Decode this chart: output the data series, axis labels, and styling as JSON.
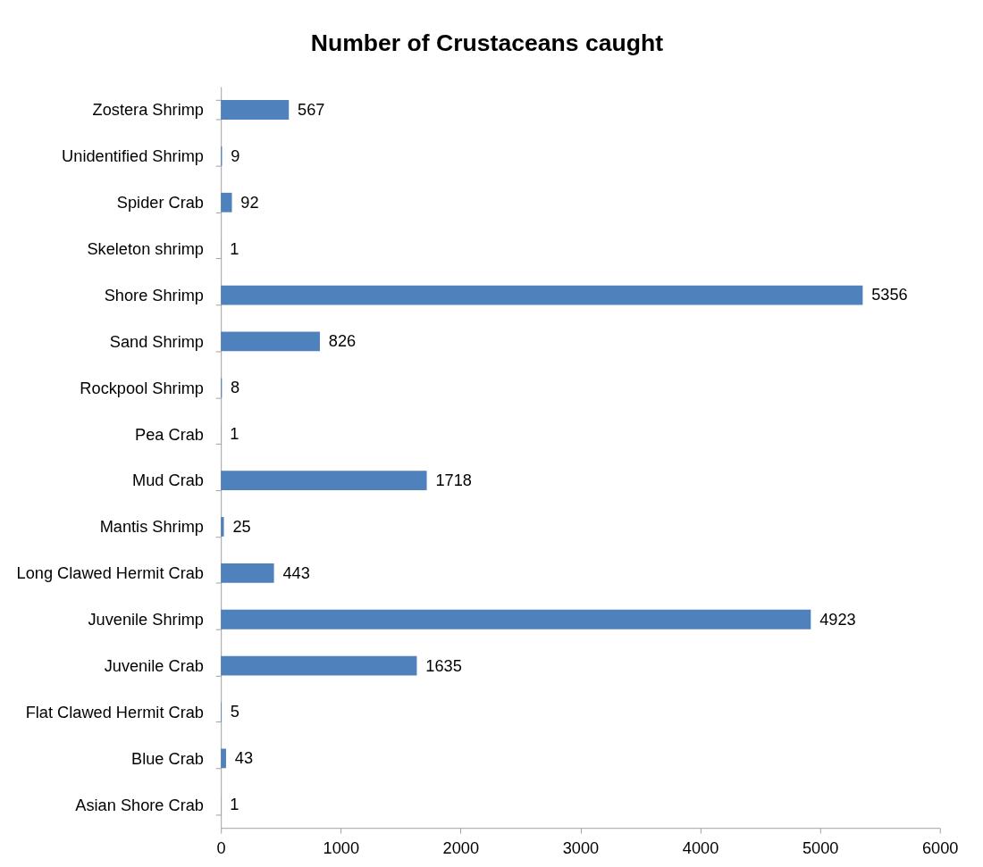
{
  "chart_data": {
    "type": "bar",
    "orientation": "horizontal",
    "title": "Number of Crustaceans caught",
    "categories": [
      "Zostera Shrimp",
      "Unidentified Shrimp",
      "Spider Crab",
      "Skeleton shrimp",
      "Shore Shrimp",
      "Sand Shrimp",
      "Rockpool Shrimp",
      "Pea Crab",
      "Mud Crab",
      "Mantis Shrimp",
      "Long Clawed Hermit Crab",
      "Juvenile Shrimp",
      "Juvenile Crab",
      "Flat Clawed Hermit Crab",
      "Blue Crab",
      "Asian Shore Crab"
    ],
    "values": [
      567,
      9,
      92,
      1,
      5356,
      826,
      8,
      1,
      1718,
      25,
      443,
      4923,
      1635,
      5,
      43,
      1
    ],
    "color": "#4f81bd",
    "xlim": [
      0,
      6000
    ],
    "xticks": [
      0,
      1000,
      2000,
      3000,
      4000,
      5000,
      6000
    ],
    "data_labels": true,
    "grid": false
  }
}
